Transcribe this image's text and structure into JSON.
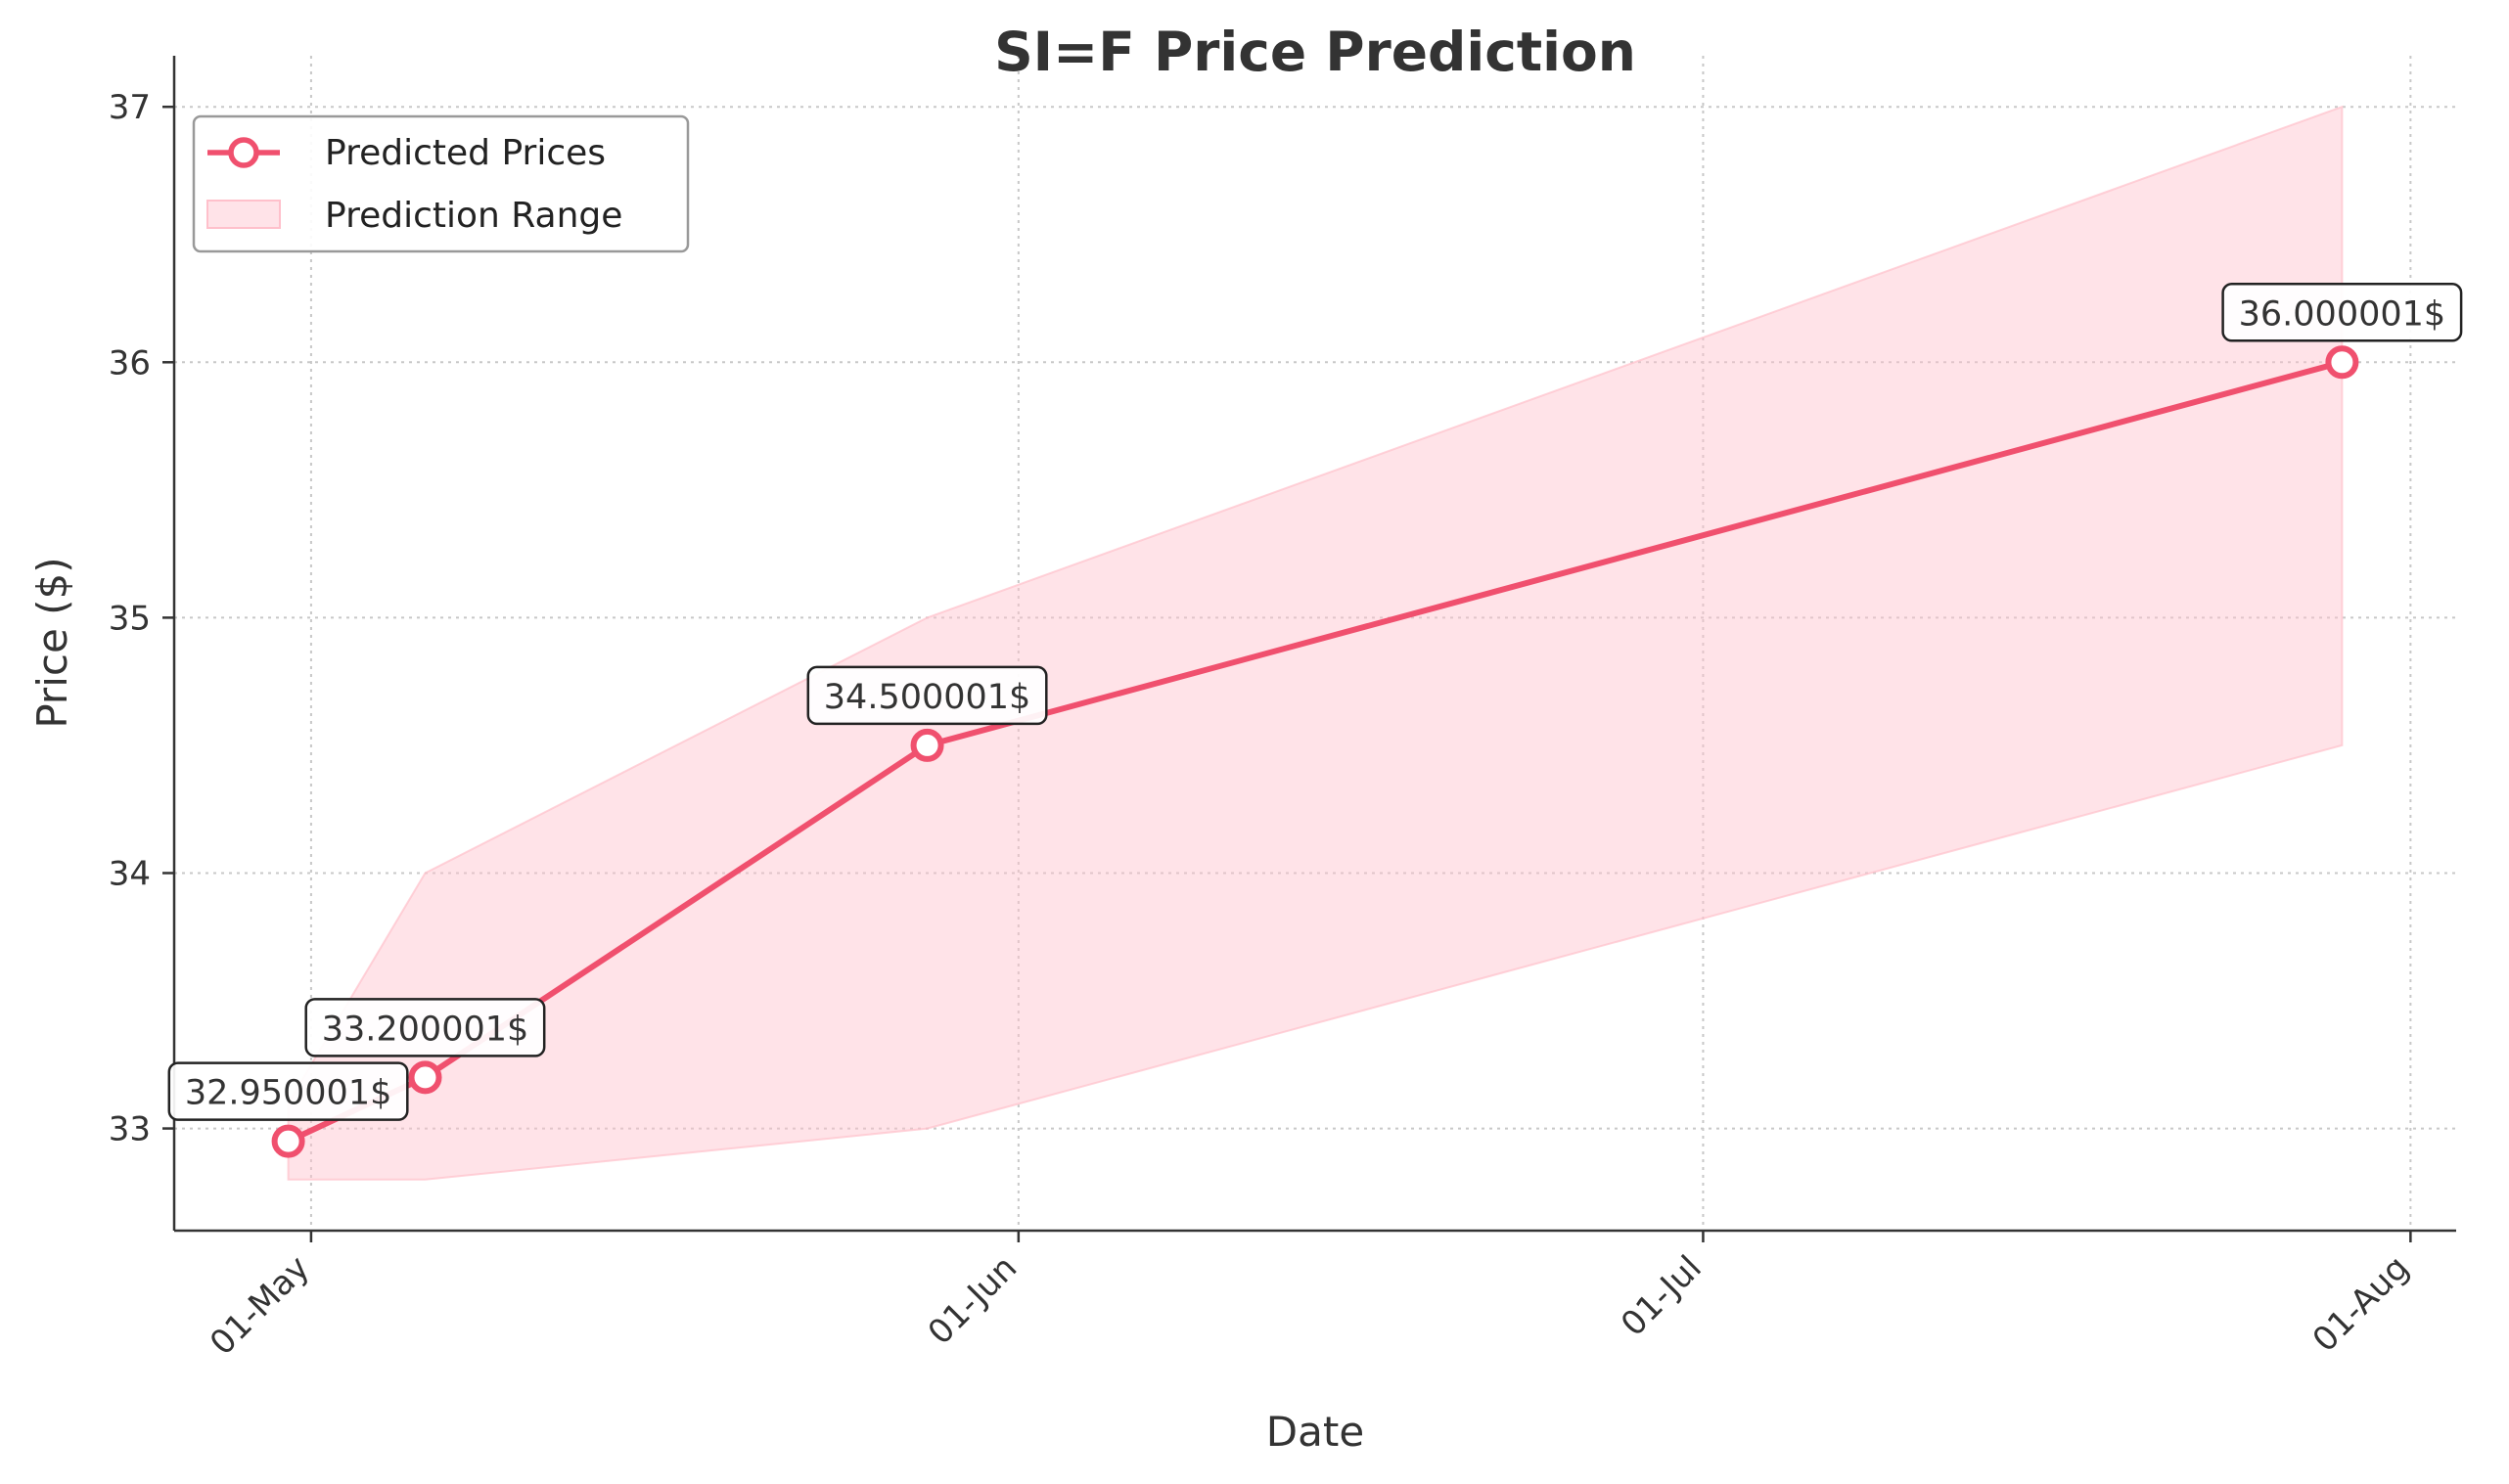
{
  "chart_data": {
    "type": "line",
    "title": "SI=F Price Prediction",
    "xlabel": "Date",
    "ylabel": "Price ($)",
    "x_ticks": [
      {
        "label": "01-May",
        "date": "2025-05-01"
      },
      {
        "label": "01-Jun",
        "date": "2025-06-01"
      },
      {
        "label": "01-Jul",
        "date": "2025-07-01"
      },
      {
        "label": "01-Aug",
        "date": "2025-08-01"
      }
    ],
    "y_ticks": [
      33,
      34,
      35,
      36,
      37
    ],
    "xlim": [
      "2025-04-25",
      "2025-08-03"
    ],
    "ylim": [
      32.6,
      37.2
    ],
    "grid": true,
    "legend_position": "top-left",
    "series": [
      {
        "name": "Predicted Prices",
        "color": "#f0506e",
        "points": [
          {
            "date": "2025-04-30",
            "value": 32.950001,
            "label": "32.950001$"
          },
          {
            "date": "2025-05-06",
            "value": 33.200001,
            "label": "33.200001$"
          },
          {
            "date": "2025-05-28",
            "value": 34.500001,
            "label": "34.500001$"
          },
          {
            "date": "2025-07-29",
            "value": 36.000001,
            "label": "36.000001$"
          }
        ]
      }
    ],
    "range": {
      "name": "Prediction Range",
      "color": "#ffc0cb",
      "points": [
        {
          "date": "2025-04-30",
          "low": 32.8,
          "high": 33.1
        },
        {
          "date": "2025-05-06",
          "low": 32.8,
          "high": 34.0
        },
        {
          "date": "2025-05-28",
          "low": 33.0,
          "high": 35.0
        },
        {
          "date": "2025-07-29",
          "low": 34.5,
          "high": 37.0
        }
      ]
    }
  }
}
